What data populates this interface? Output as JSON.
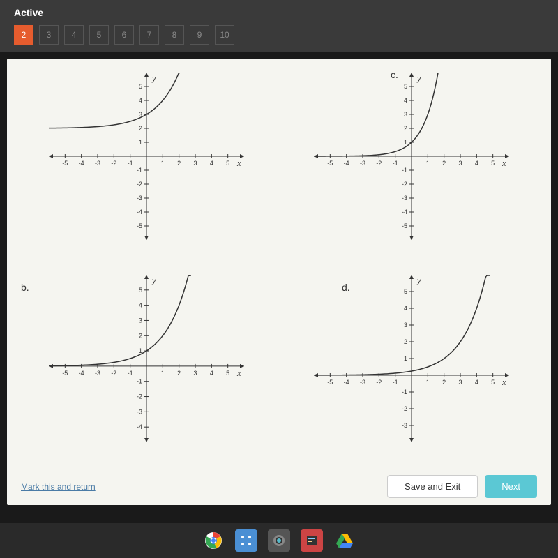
{
  "header": {
    "title": "Active",
    "nav_items": [
      {
        "label": "2",
        "active": true
      },
      {
        "label": "3",
        "active": false
      },
      {
        "label": "4",
        "active": false
      },
      {
        "label": "5",
        "active": false
      },
      {
        "label": "6",
        "active": false
      },
      {
        "label": "7",
        "active": false
      },
      {
        "label": "8",
        "active": false
      },
      {
        "label": "9",
        "active": false
      },
      {
        "label": "10",
        "active": false
      }
    ]
  },
  "graphs": {
    "a": {
      "label": "",
      "xlim": [
        -6,
        6
      ],
      "ylim": [
        -6,
        6
      ],
      "xticks": [
        -5,
        -4,
        -3,
        -2,
        -1,
        1,
        2,
        3,
        4,
        5
      ],
      "yticks": [
        -5,
        -4,
        -3,
        -2,
        -1,
        1,
        2,
        3,
        4,
        5
      ],
      "curve_type": "shifted_exp",
      "y_intercept": 3,
      "asymptote": 2
    },
    "b": {
      "label": "b.",
      "xlim": [
        -6,
        6
      ],
      "ylim": [
        -5,
        6
      ],
      "xticks": [
        -5,
        -4,
        -3,
        -2,
        -1,
        1,
        2,
        3,
        4,
        5
      ],
      "yticks": [
        -4,
        -3,
        -2,
        -1,
        1,
        2,
        3,
        4,
        5
      ],
      "curve_type": "exp",
      "y_intercept": 1,
      "base": 2
    },
    "c": {
      "label": "c.",
      "xlim": [
        -6,
        6
      ],
      "ylim": [
        -6,
        6
      ],
      "xticks": [
        -5,
        -4,
        -3,
        -2,
        -1,
        1,
        2,
        3,
        4,
        5
      ],
      "yticks": [
        -5,
        -4,
        -3,
        -2,
        -1,
        1,
        2,
        3,
        4,
        5
      ],
      "curve_type": "exp",
      "y_intercept": 1,
      "base": 3
    },
    "d": {
      "label": "d.",
      "xlim": [
        -6,
        6
      ],
      "ylim": [
        -4,
        6
      ],
      "xticks": [
        -5,
        -4,
        -3,
        -2,
        -1,
        1,
        2,
        3,
        4,
        5
      ],
      "yticks": [
        -3,
        -2,
        -1,
        1,
        2,
        3,
        4,
        5
      ],
      "curve_type": "shifted_exp_right",
      "y_intercept": 1,
      "xshift": 2
    }
  },
  "chart_style": {
    "axis_color": "#333333",
    "curve_color": "#333333",
    "background": "#f5f5f0",
    "tick_fontsize": 9,
    "axis_label_fontsize": 11
  },
  "buttons": {
    "mark_return": "Mark this and return",
    "save_exit": "Save and Exit",
    "next": "Next"
  },
  "taskbar": {
    "icons": [
      "chrome",
      "apps",
      "camera",
      "editor",
      "drive"
    ]
  }
}
